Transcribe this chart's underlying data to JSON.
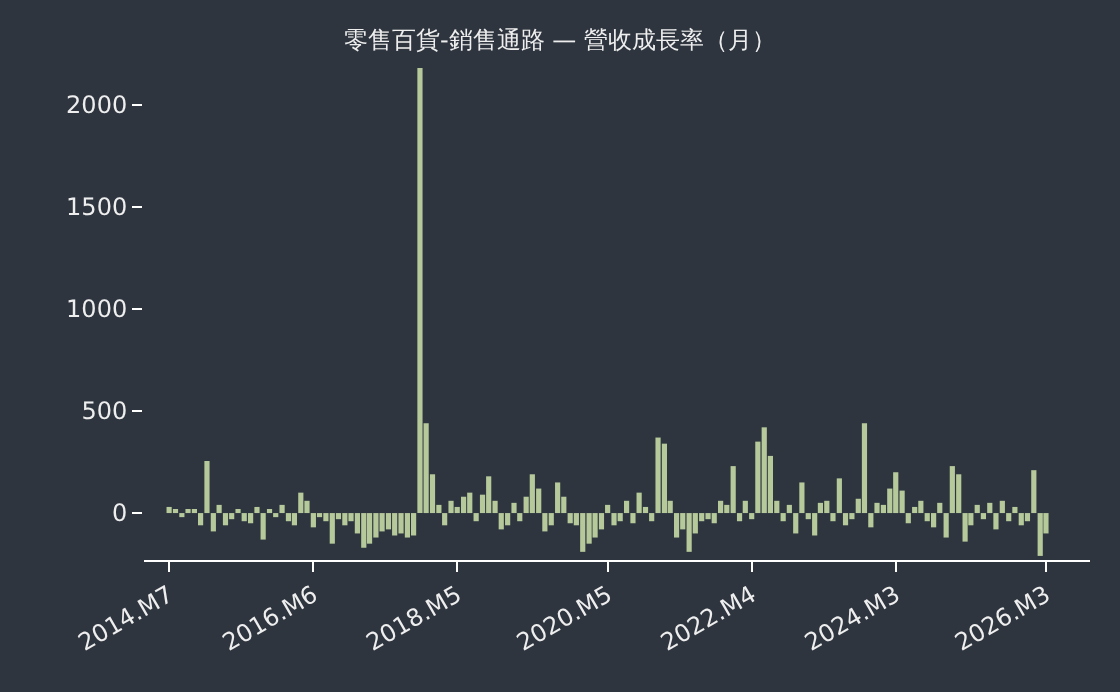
{
  "chart_data": {
    "type": "bar",
    "title": "零售百貨-銷售通路 — 營收成長率（月）",
    "x": [
      "2014-07",
      "2014-08",
      "2014-09",
      "2014-10",
      "2014-11",
      "2014-12",
      "2015-01",
      "2015-02",
      "2015-03",
      "2015-04",
      "2015-05",
      "2015-06",
      "2015-07",
      "2015-08",
      "2015-09",
      "2015-10",
      "2015-11",
      "2015-12",
      "2016-01",
      "2016-02",
      "2016-03",
      "2016-04",
      "2016-05",
      "2016-06",
      "2016-07",
      "2016-08",
      "2016-09",
      "2016-10",
      "2016-11",
      "2016-12",
      "2017-01",
      "2017-02",
      "2017-03",
      "2017-04",
      "2017-05",
      "2017-06",
      "2017-07",
      "2017-08",
      "2017-09",
      "2017-10",
      "2017-11",
      "2017-12",
      "2018-01",
      "2018-02",
      "2018-03",
      "2018-04",
      "2018-05",
      "2018-06",
      "2018-07",
      "2018-08",
      "2018-09",
      "2018-10",
      "2018-11",
      "2018-12",
      "2019-01",
      "2019-02",
      "2019-03",
      "2019-04",
      "2019-05",
      "2019-06",
      "2019-07",
      "2019-08",
      "2019-09",
      "2019-10",
      "2019-11",
      "2019-12",
      "2020-01",
      "2020-02",
      "2020-03",
      "2020-04",
      "2020-05",
      "2020-06",
      "2020-07",
      "2020-08",
      "2020-09",
      "2020-10",
      "2020-11",
      "2020-12",
      "2021-01",
      "2021-02",
      "2021-03",
      "2021-04",
      "2021-05",
      "2021-06",
      "2021-07",
      "2021-08",
      "2021-09",
      "2021-10",
      "2021-11",
      "2021-12",
      "2022-01",
      "2022-02",
      "2022-03",
      "2022-04",
      "2022-05",
      "2022-06",
      "2022-07",
      "2022-08",
      "2022-09",
      "2022-10",
      "2022-11",
      "2022-12",
      "2023-01",
      "2023-02",
      "2023-03",
      "2023-04",
      "2023-05",
      "2023-06",
      "2023-07",
      "2023-08",
      "2023-09",
      "2023-10",
      "2023-11",
      "2023-12",
      "2024-01",
      "2024-02",
      "2024-03",
      "2024-04",
      "2024-05",
      "2024-06",
      "2024-07",
      "2024-08",
      "2024-09",
      "2024-10",
      "2024-11",
      "2024-12",
      "2025-01",
      "2025-02",
      "2025-03",
      "2025-04",
      "2025-05",
      "2025-06",
      "2025-07",
      "2025-08",
      "2025-09",
      "2025-10",
      "2025-11",
      "2025-12",
      "2026-01",
      "2026-02",
      "2026-03"
    ],
    "series": [
      {
        "color": "#b5c99a",
        "values": [
          30,
          20,
          -20,
          20,
          20,
          -60,
          255,
          -90,
          40,
          -60,
          -30,
          20,
          -40,
          -50,
          30,
          -130,
          20,
          -20,
          40,
          -40,
          -60,
          100,
          60,
          -70,
          -20,
          -40,
          -150,
          -30,
          -60,
          -40,
          -100,
          -170,
          -150,
          -120,
          -90,
          -80,
          -110,
          -100,
          -120,
          -110,
          2180,
          440,
          190,
          40,
          -60,
          60,
          30,
          80,
          100,
          -40,
          90,
          180,
          60,
          -80,
          -60,
          50,
          -40,
          80,
          190,
          120,
          -90,
          -60,
          150,
          80,
          -50,
          -60,
          -190,
          -150,
          -120,
          -80,
          40,
          -60,
          -40,
          60,
          -50,
          100,
          30,
          -40,
          370,
          340,
          60,
          -120,
          -80,
          -190,
          -100,
          -40,
          -30,
          -50,
          60,
          40,
          230,
          -40,
          60,
          -30,
          350,
          420,
          280,
          60,
          -40,
          40,
          -100,
          150,
          -30,
          -110,
          50,
          60,
          -40,
          170,
          -60,
          -30,
          70,
          440,
          -70,
          50,
          40,
          120,
          200,
          110,
          -50,
          30,
          60,
          -40,
          -70,
          50,
          -120,
          230,
          190,
          -140,
          -60,
          40,
          -30,
          50,
          -80,
          60,
          -40,
          30,
          -60,
          -40,
          210,
          -210,
          -100
        ]
      }
    ],
    "xlim": [
      "2014-03",
      "2026-10"
    ],
    "xticks": [
      {
        "value": "2014-07",
        "label": "2014.M7"
      },
      {
        "value": "2016-06",
        "label": "2016.M6"
      },
      {
        "value": "2018-05",
        "label": "2018.M5"
      },
      {
        "value": "2020-05",
        "label": "2020.M5"
      },
      {
        "value": "2022-04",
        "label": "2022.M4"
      },
      {
        "value": "2024-03",
        "label": "2024.M3"
      },
      {
        "value": "2026-03",
        "label": "2026.M3"
      }
    ],
    "ylim": [
      -230,
      2200
    ],
    "yticks": [
      0,
      500,
      1000,
      1500,
      2000
    ]
  }
}
